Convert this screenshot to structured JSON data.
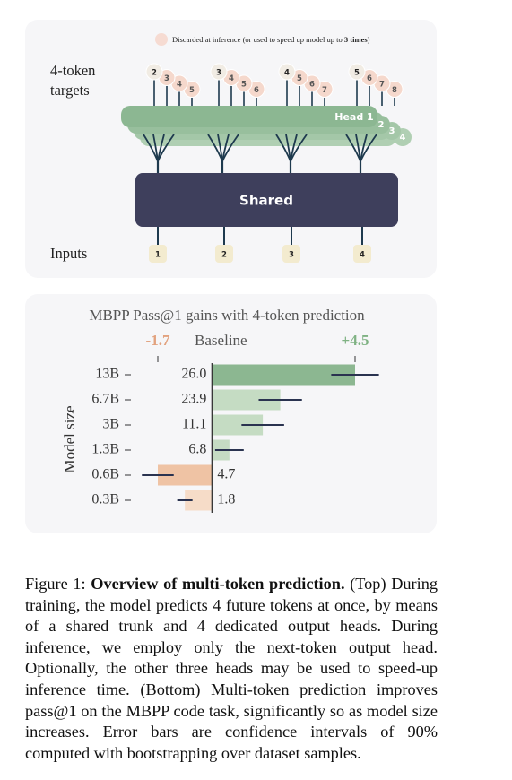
{
  "diagram": {
    "legend": {
      "text": "Discarded at inference (or used to speed up model up to ",
      "bold": "3 times",
      "end": ")"
    },
    "targets_label": [
      "4-token",
      "targets"
    ],
    "targets": [
      [
        "2",
        "3",
        "4",
        "5"
      ],
      [
        "3",
        "4",
        "5",
        "6"
      ],
      [
        "4",
        "5",
        "6",
        "7"
      ],
      [
        "5",
        "6",
        "7",
        "8"
      ]
    ],
    "heads": [
      "Head 1",
      "2",
      "3",
      "4"
    ],
    "trunk": "Shared",
    "inputs_label": "Inputs",
    "inputs": [
      "1",
      "2",
      "3",
      "4"
    ]
  },
  "chart_data": {
    "type": "bar",
    "orientation": "horizontal",
    "title": "MBPP Pass@1  gains with 4-token prediction",
    "ylabel": "Model size",
    "categories": [
      "13B",
      "6.7B",
      "3B",
      "1.3B",
      "0.6B",
      "0.3B"
    ],
    "values": [
      4.5,
      2.15,
      1.6,
      0.55,
      -1.7,
      -0.85
    ],
    "errors": [
      0.75,
      0.68,
      0.67,
      0.45,
      0.5,
      0.24
    ],
    "baseline_labels": [
      "26.0",
      "23.9",
      "11.1",
      "6.8",
      "4.7",
      "1.8"
    ],
    "colors": [
      "#8cb791",
      "#c5dcc3",
      "#c5dcc3",
      "#c5dcc3",
      "#efc3a4",
      "#f6dcc8"
    ],
    "xlim": [
      -1.7,
      4.5
    ],
    "xticks": [
      -1.7,
      {
        "value": 0,
        "label": "Baseline"
      },
      {
        "value": 4.5,
        "label": "+4.5"
      }
    ],
    "xtick_colors": [
      "#e2a27e",
      "#555555",
      "#7fb283"
    ]
  },
  "caption": {
    "label": "Figure 1:",
    "title": "Overview of multi-token prediction.",
    "text": "(Top) During training, the model predicts 4 future tokens at once, by means of a shared trunk and 4 dedicated output heads. During inference, we employ only the next-token output head. Optionally, the other three heads may be used to speed-up inference time. (Bottom) Multi-token prediction improves pass@1 on the MBPP code task, significantly so as model size increases. Error bars are confidence intervals of 90% computed with bootstrapping over dataset samples."
  }
}
